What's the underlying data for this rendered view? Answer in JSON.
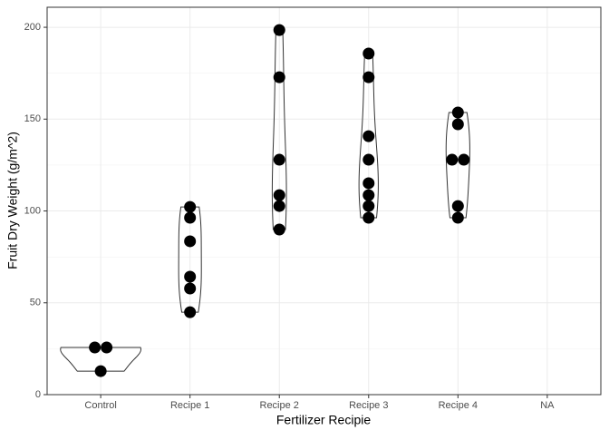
{
  "chart_data": {
    "type": "violin",
    "x_label": "Fertilizer Recipie",
    "y_label": "Fruit Dry Weight (g/m^2)",
    "categories": [
      "Control",
      "Recipe 1",
      "Recipe 2",
      "Recipe 3",
      "Recipe 4",
      "NA"
    ],
    "values": [
      [
        25.7,
        25.7,
        12.8
      ],
      [
        102.2,
        96.3,
        83.5,
        64.2,
        57.8,
        44.9
      ],
      [
        198.5,
        172.8,
        127.9,
        108.6,
        102.7,
        89.9
      ],
      [
        185.7,
        172.8,
        140.7,
        127.9,
        115.1,
        108.6,
        102.7,
        96.3
      ],
      [
        153.6,
        147.2,
        127.9,
        127.9,
        102.7,
        96.3
      ],
      []
    ],
    "color": "#000000",
    "ylim": [
      0,
      210.9
    ],
    "yticks": [
      0,
      50,
      100,
      150,
      200
    ],
    "y_minor_ticks": [
      25,
      75,
      125,
      175,
      210.9
    ],
    "grid": true
  }
}
